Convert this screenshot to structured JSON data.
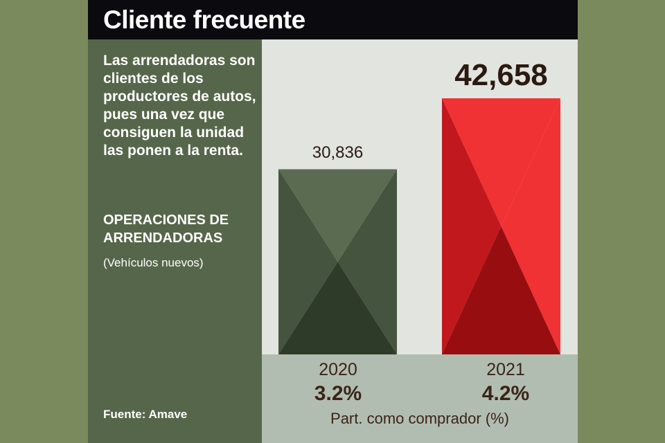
{
  "title": "Cliente frecuente",
  "description": "Las arrendadoras son clientes de los productores de autos, pues una vez que consiguen la unidad las ponen a la renta.",
  "subtitle": "OPERACIONES DE ARRENDADORAS",
  "unit": "(Vehículos nuevos)",
  "source": "Fuente: Amave",
  "chart_data": {
    "type": "bar",
    "title": "OPERACIONES DE ARRENDADORAS",
    "categories": [
      "2020",
      "2021"
    ],
    "values": [
      30836,
      42658
    ],
    "value_labels": [
      "30,836",
      "42,658"
    ],
    "share_labels": [
      "3.2%",
      "4.2%"
    ],
    "share_caption": "Part. como comprador (%)",
    "ylim": [
      0,
      42658
    ],
    "colors": [
      "#4a5a42",
      "#d41c20"
    ]
  }
}
